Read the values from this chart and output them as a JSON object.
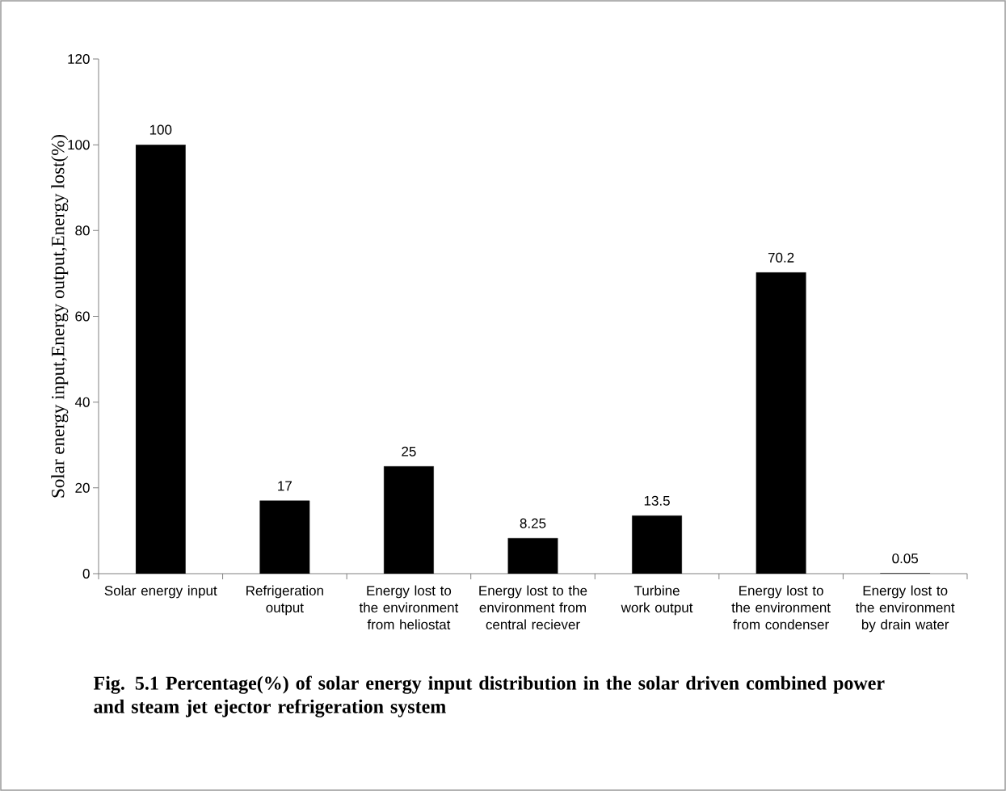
{
  "chart_data": {
    "type": "bar",
    "ylabel": "Solar energy input,Energy output,Energy lost(%)",
    "categories": [
      "Solar energy input",
      "Refrigeration output",
      "Energy lost to the environment from heliostat",
      "Energy lost to the environment from central reciever",
      "Turbine work output",
      "Energy lost to the environment from condenser",
      "Energy lost to the environment by drain water"
    ],
    "values": [
      100,
      17,
      25,
      8.25,
      13.5,
      70.2,
      0.05
    ],
    "color": "#000000",
    "ylim": [
      0,
      120
    ],
    "yticks": [
      0,
      20,
      40,
      60,
      80,
      100,
      120
    ],
    "data_labels": true,
    "grid": false,
    "annotations": [
      "Fig. 5.1  Percentage(%) of solar energy input distribution in the solar driven combined power and steam jet ejector refrigeration system"
    ]
  }
}
